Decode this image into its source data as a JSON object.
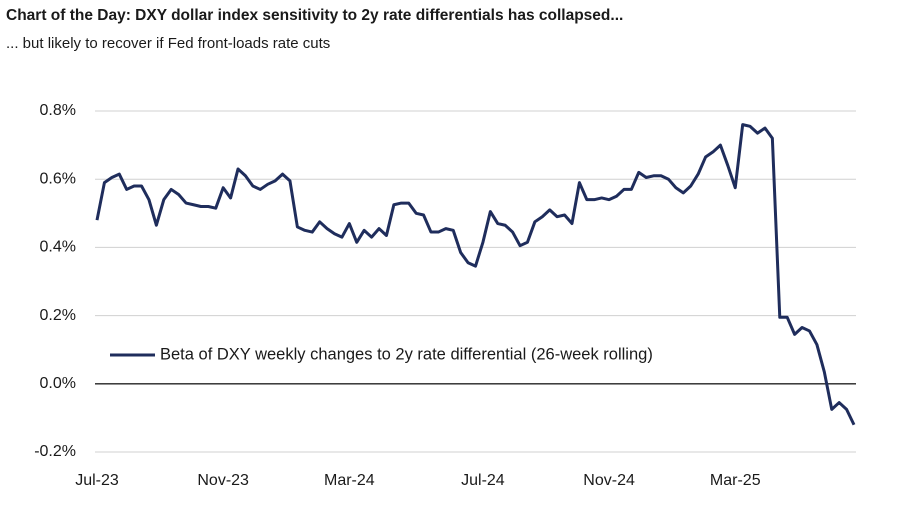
{
  "chart_data": {
    "type": "line",
    "title": "Chart of the Day: DXY dollar index sensitivity to 2y rate differentials has collapsed...",
    "subtitle": "... but likely to recover if Fed front-loads rate cuts",
    "categories": [
      "Jul-23",
      null,
      null,
      null,
      null,
      null,
      null,
      null,
      null,
      null,
      null,
      null,
      null,
      null,
      null,
      null,
      null,
      "Nov-23",
      null,
      null,
      null,
      null,
      null,
      null,
      null,
      null,
      null,
      null,
      null,
      null,
      null,
      null,
      null,
      null,
      "Mar-24",
      null,
      null,
      null,
      null,
      null,
      null,
      null,
      null,
      null,
      null,
      null,
      null,
      null,
      null,
      null,
      null,
      null,
      "Jul-24",
      null,
      null,
      null,
      null,
      null,
      null,
      null,
      null,
      null,
      null,
      null,
      null,
      null,
      null,
      null,
      null,
      "Nov-24",
      null,
      null,
      null,
      null,
      null,
      null,
      null,
      null,
      null,
      null,
      null,
      null,
      null,
      null,
      null,
      null,
      "Mar-25",
      null,
      null,
      null,
      null,
      null,
      null,
      null,
      null,
      null,
      null,
      null,
      null,
      null,
      null,
      null,
      null
    ],
    "series": [
      {
        "name": "Beta of DXY weekly changes to 2y rate differential (26-week rolling)",
        "color": "#1f2d5c",
        "values": [
          0.48,
          0.59,
          0.605,
          0.615,
          0.57,
          0.58,
          0.58,
          0.54,
          0.465,
          0.54,
          0.57,
          0.555,
          0.53,
          0.525,
          0.52,
          0.52,
          0.515,
          0.575,
          0.545,
          0.63,
          0.61,
          0.58,
          0.57,
          0.585,
          0.595,
          0.615,
          0.595,
          0.46,
          0.45,
          0.445,
          0.475,
          0.455,
          0.44,
          0.43,
          0.47,
          0.415,
          0.45,
          0.43,
          0.455,
          0.435,
          0.525,
          0.53,
          0.53,
          0.5,
          0.495,
          0.445,
          0.445,
          0.455,
          0.45,
          0.385,
          0.355,
          0.345,
          0.415,
          0.505,
          0.47,
          0.465,
          0.445,
          0.405,
          0.415,
          0.475,
          0.49,
          0.51,
          0.49,
          0.495,
          0.47,
          0.59,
          0.54,
          0.54,
          0.545,
          0.54,
          0.55,
          0.57,
          0.57,
          0.62,
          0.605,
          0.61,
          0.61,
          0.6,
          0.575,
          0.56,
          0.58,
          0.615,
          0.665,
          0.68,
          0.7,
          0.64,
          0.575,
          0.76,
          0.755,
          0.735,
          0.75,
          0.72,
          0.195,
          0.195,
          0.145,
          0.165,
          0.155,
          0.115,
          0.035,
          -0.075,
          -0.055,
          -0.075,
          -0.12
        ]
      }
    ],
    "ylim": [
      -0.2,
      0.8
    ],
    "yticks": [
      {
        "value": -0.2,
        "label": "-0.2%"
      },
      {
        "value": 0,
        "label": "0.0%"
      },
      {
        "value": 0.2,
        "label": "0.2%"
      },
      {
        "value": 0.4,
        "label": "0.4%"
      },
      {
        "value": 0.6,
        "label": "0.6%"
      },
      {
        "value": 0.8,
        "label": "0.8%"
      }
    ],
    "grid": true
  }
}
